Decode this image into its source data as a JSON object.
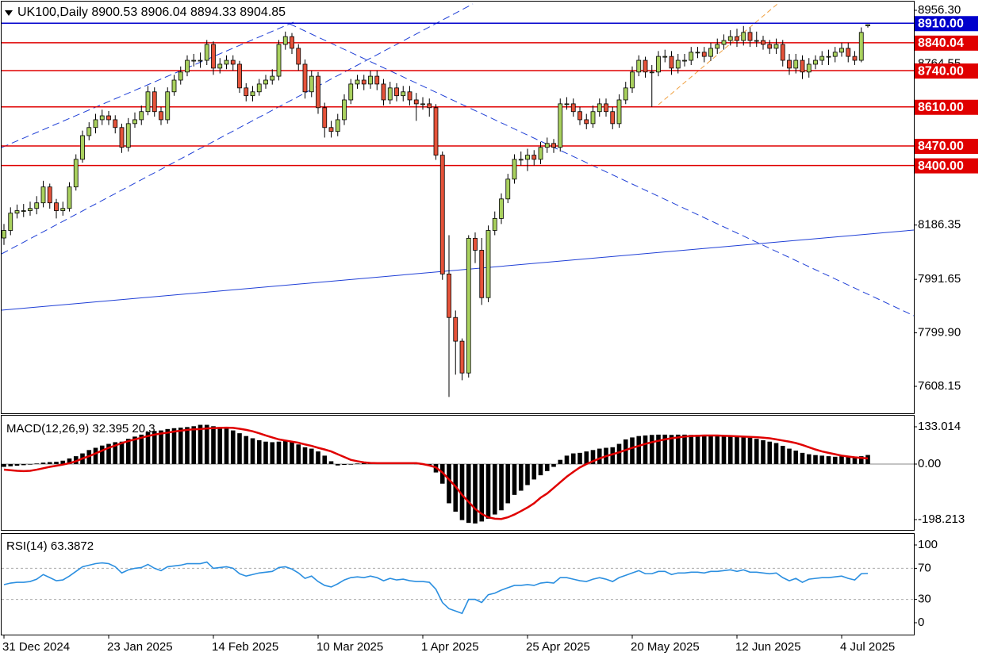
{
  "chart_data": [
    {
      "type": "candlestick",
      "title": "UK100,Daily 8900.53 8906.04 8894.33 8904.85",
      "categories": [
        "31 Dec 2024",
        null,
        null,
        null,
        null,
        null,
        null,
        null,
        null,
        null,
        null,
        null,
        null,
        null,
        null,
        null,
        "23 Jan 2025",
        null,
        null,
        null,
        null,
        null,
        null,
        null,
        null,
        null,
        null,
        null,
        null,
        null,
        null,
        null,
        "14 Feb 2025",
        null,
        null,
        null,
        null,
        null,
        null,
        null,
        null,
        null,
        null,
        null,
        null,
        null,
        null,
        null,
        "10 Mar 2025",
        null,
        null,
        null,
        null,
        null,
        null,
        null,
        null,
        null,
        null,
        null,
        null,
        null,
        null,
        null,
        "1 Apr 2025",
        null,
        null,
        null,
        null,
        null,
        null,
        null,
        null,
        null,
        null,
        null,
        null,
        null,
        null,
        null,
        "25 Apr 2025",
        null,
        null,
        null,
        null,
        null,
        null,
        null,
        null,
        null,
        null,
        null,
        null,
        null,
        null,
        null,
        "20 May 2025",
        null,
        null,
        null,
        null,
        null,
        null,
        null,
        null,
        null,
        null,
        null,
        null,
        null,
        null,
        null,
        "12 Jun 2025",
        null,
        null,
        null,
        null,
        null,
        null,
        null,
        null,
        null,
        null,
        null,
        null,
        null,
        null,
        null,
        "4 Jul 2025",
        null,
        null,
        null,
        null
      ],
      "open": [
        8140,
        8167,
        8229,
        8238,
        8238,
        8246,
        8266,
        8323,
        8266,
        8238,
        8246,
        8323,
        8422,
        8507,
        8536,
        8564,
        8578,
        8564,
        8536,
        8465,
        8550,
        8564,
        8593,
        8664,
        8593,
        8564,
        8664,
        8706,
        8735,
        8777,
        8777,
        8777,
        8834,
        8749,
        8763,
        8777,
        8763,
        8678,
        8650,
        8664,
        8692,
        8706,
        8720,
        8834,
        8862,
        8820,
        8763,
        8664,
        8720,
        8607,
        8536,
        8522,
        8564,
        8635,
        8692,
        8706,
        8692,
        8720,
        8692,
        8635,
        8678,
        8650,
        8664,
        8635,
        8621,
        8621,
        8607,
        8437,
        8011,
        7855,
        7770,
        7656,
        8139,
        8096,
        7926,
        8167,
        8210,
        8280,
        8351,
        8422,
        8422,
        8437,
        8422,
        8465,
        8479,
        8465,
        8621,
        8621,
        8593,
        8564,
        8550,
        8593,
        8621,
        8593,
        8550,
        8635,
        8678,
        8735,
        8777,
        8735,
        8735,
        8791,
        8791,
        8749,
        8777,
        8777,
        8806,
        8806,
        8791,
        8820,
        8834,
        8848,
        8862,
        8848,
        8877,
        8848,
        8848,
        8834,
        8820,
        8834,
        8777,
        8749,
        8777,
        8735,
        8763,
        8777,
        8791,
        8791,
        8806,
        8820,
        8791,
        8777,
        8900.53
      ],
      "high": [
        8190,
        8250,
        8260,
        8262,
        8270,
        8290,
        8345,
        8335,
        8280,
        8270,
        8340,
        8440,
        8525,
        8555,
        8585,
        8600,
        8595,
        8580,
        8550,
        8570,
        8590,
        8615,
        8685,
        8680,
        8610,
        8680,
        8725,
        8755,
        8795,
        8800,
        8805,
        8850,
        8845,
        8785,
        8795,
        8795,
        8775,
        8695,
        8685,
        8710,
        8725,
        8745,
        8850,
        8880,
        8875,
        8835,
        8780,
        8740,
        8735,
        8625,
        8560,
        8585,
        8655,
        8710,
        8725,
        8725,
        8740,
        8740,
        8710,
        8700,
        8695,
        8685,
        8685,
        8660,
        8645,
        8640,
        8620,
        8450,
        8150,
        7880,
        7780,
        8150,
        8160,
        8140,
        8185,
        8235,
        8300,
        8370,
        8440,
        8450,
        8460,
        8455,
        8485,
        8500,
        8495,
        8640,
        8645,
        8640,
        8610,
        8585,
        8615,
        8640,
        8640,
        8610,
        8655,
        8700,
        8755,
        8795,
        8790,
        8760,
        8810,
        8815,
        8810,
        8800,
        8800,
        8825,
        8825,
        8825,
        8840,
        8855,
        8870,
        8885,
        8890,
        8900,
        8895,
        8880,
        8865,
        8850,
        8855,
        8850,
        8800,
        8800,
        8795,
        8785,
        8795,
        8810,
        8815,
        8825,
        8840,
        8840,
        8810,
        8895,
        8906.04
      ],
      "low": [
        8115,
        8150,
        8210,
        8215,
        8220,
        8225,
        8250,
        8245,
        8210,
        8220,
        8235,
        8310,
        8410,
        8490,
        8515,
        8545,
        8545,
        8515,
        8445,
        8450,
        8535,
        8545,
        8580,
        8575,
        8545,
        8550,
        8650,
        8690,
        8720,
        8755,
        8750,
        8760,
        8725,
        8730,
        8745,
        8740,
        8660,
        8630,
        8630,
        8650,
        8675,
        8690,
        8705,
        8815,
        8800,
        8740,
        8640,
        8645,
        8585,
        8500,
        8500,
        8505,
        8545,
        8620,
        8675,
        8670,
        8675,
        8670,
        8615,
        8620,
        8630,
        8630,
        8615,
        8560,
        8600,
        8575,
        8420,
        7990,
        7570,
        7650,
        7630,
        7640,
        8050,
        7900,
        7910,
        8150,
        8190,
        8265,
        8335,
        8400,
        8380,
        8400,
        8405,
        8445,
        8445,
        8450,
        8600,
        8575,
        8545,
        8530,
        8535,
        8575,
        8575,
        8530,
        8535,
        8620,
        8660,
        8720,
        8715,
        8610,
        8720,
        8770,
        8725,
        8730,
        8755,
        8760,
        8785,
        8770,
        8775,
        8800,
        8815,
        8830,
        8825,
        8830,
        8825,
        8825,
        8815,
        8800,
        8800,
        8755,
        8725,
        8730,
        8710,
        8715,
        8745,
        8760,
        8760,
        8770,
        8790,
        8770,
        8760,
        8770,
        8894.33
      ],
      "close": [
        8167,
        8229,
        8238,
        8238,
        8246,
        8266,
        8323,
        8266,
        8238,
        8246,
        8323,
        8422,
        8507,
        8536,
        8564,
        8578,
        8564,
        8536,
        8465,
        8550,
        8564,
        8593,
        8664,
        8593,
        8564,
        8664,
        8706,
        8735,
        8777,
        8777,
        8777,
        8834,
        8749,
        8763,
        8777,
        8763,
        8678,
        8650,
        8664,
        8692,
        8706,
        8720,
        8834,
        8862,
        8820,
        8763,
        8664,
        8720,
        8607,
        8536,
        8522,
        8564,
        8635,
        8692,
        8706,
        8692,
        8720,
        8692,
        8635,
        8678,
        8650,
        8664,
        8635,
        8621,
        8621,
        8607,
        8437,
        8011,
        7855,
        7770,
        7656,
        8139,
        8096,
        7926,
        8167,
        8210,
        8280,
        8351,
        8422,
        8422,
        8437,
        8422,
        8465,
        8479,
        8465,
        8621,
        8621,
        8593,
        8564,
        8550,
        8593,
        8621,
        8593,
        8550,
        8635,
        8678,
        8735,
        8777,
        8735,
        8735,
        8791,
        8791,
        8749,
        8777,
        8777,
        8806,
        8806,
        8791,
        8820,
        8834,
        8848,
        8862,
        8848,
        8877,
        8848,
        8848,
        8834,
        8820,
        8834,
        8777,
        8749,
        8777,
        8735,
        8763,
        8777,
        8791,
        8791,
        8806,
        8820,
        8791,
        8777,
        8877,
        8904.85
      ],
      "up_color": "#a9d15e",
      "down_color": "#e5533a",
      "ylim": [
        7511.5,
        8990.4
      ],
      "yticks": [
        {
          "value": 8956.3,
          "label": "8956.30"
        },
        {
          "value": 8764.55,
          "label": "8764.55"
        },
        {
          "value": 8186.35,
          "label": "8186.35"
        },
        {
          "value": 7991.65,
          "label": "7991.65"
        },
        {
          "value": 7799.9,
          "label": "7799.90"
        },
        {
          "value": 7608.15,
          "label": "7608.15"
        }
      ],
      "levels": [
        {
          "value": 8910,
          "label": "8910.00",
          "color": "#0000cc"
        },
        {
          "value": 8840.04,
          "label": "8840.04",
          "color": "#e00000"
        },
        {
          "value": 8740,
          "label": "8740.00",
          "color": "#e00000"
        },
        {
          "value": 8610,
          "label": "8610.00",
          "color": "#e00000"
        },
        {
          "value": 8470,
          "label": "8470.00",
          "color": "#e00000"
        },
        {
          "value": 8400,
          "label": "8400.00",
          "color": "#e00000"
        }
      ]
    },
    {
      "type": "macd",
      "title": "MACD(12,26,9) 32.395 20.3",
      "histogram": {
        "color": "#000000",
        "values": [
          -10,
          -8,
          -6,
          -4,
          -2,
          2,
          5,
          7,
          8,
          12,
          20,
          28,
          38,
          50,
          58,
          66,
          72,
          78,
          80,
          90,
          98,
          105,
          115,
          118,
          120,
          125,
          128,
          130,
          132,
          135,
          140,
          140,
          135,
          132,
          130,
          120,
          110,
          100,
          92,
          85,
          80,
          78,
          80,
          82,
          78,
          70,
          60,
          55,
          45,
          30,
          10,
          -5,
          -3,
          -2,
          2,
          3,
          4,
          3,
          2,
          2,
          2,
          2,
          2,
          1,
          -3,
          -6,
          -30,
          -70,
          -140,
          -170,
          -200,
          -210,
          -212,
          -205,
          -195,
          -180,
          -165,
          -140,
          -110,
          -95,
          -75,
          -55,
          -40,
          -25,
          -10,
          15,
          30,
          38,
          40,
          45,
          50,
          55,
          58,
          60,
          72,
          88,
          95,
          100,
          102,
          104,
          105,
          105,
          104,
          105,
          105,
          104,
          104,
          103,
          103,
          103,
          102,
          100,
          98,
          96,
          94,
          90,
          85,
          80,
          75,
          65,
          55,
          48,
          40,
          35,
          32,
          30,
          28,
          26,
          28,
          25,
          24,
          28,
          32.395
        ]
      },
      "signal": {
        "color": "#e00000",
        "values": [
          -20,
          -22,
          -24,
          -25,
          -24,
          -20,
          -15,
          -10,
          -6,
          -2,
          3,
          10,
          20,
          28,
          38,
          48,
          58,
          66,
          75,
          82,
          88,
          94,
          100,
          105,
          109,
          112,
          116,
          119,
          122,
          124,
          125,
          127,
          128,
          129,
          130,
          129,
          126,
          122,
          117,
          110,
          102,
          95,
          88,
          84,
          80,
          76,
          70,
          65,
          58,
          52,
          45,
          35,
          25,
          15,
          10,
          6,
          4,
          3,
          3,
          3,
          3,
          3,
          3,
          3,
          0,
          -5,
          -12,
          -30,
          -55,
          -80,
          -110,
          -135,
          -160,
          -178,
          -190,
          -195,
          -196,
          -190,
          -180,
          -168,
          -155,
          -140,
          -120,
          -105,
          -85,
          -65,
          -45,
          -28,
          -12,
          0,
          10,
          20,
          28,
          35,
          42,
          50,
          58,
          65,
          72,
          78,
          83,
          88,
          92,
          95,
          98,
          100,
          101,
          102,
          102,
          102,
          101,
          100,
          99,
          98,
          97,
          96,
          94,
          92,
          88,
          84,
          80,
          75,
          68,
          60,
          52,
          45,
          40,
          35,
          30,
          27,
          24,
          22,
          20.3
        ]
      },
      "ylim": [
        -235,
        175.5
      ],
      "yticks": [
        {
          "value": 133.014,
          "label": "133.014"
        },
        {
          "value": 0,
          "label": "0.00"
        },
        {
          "value": -198.213,
          "label": "-198.213"
        }
      ]
    },
    {
      "type": "line",
      "title": "RSI(14) 63.3872",
      "color": "#2b8fe0",
      "values": [
        49,
        51,
        52,
        52,
        53,
        56,
        62,
        58,
        54,
        55,
        60,
        66,
        72,
        74,
        76,
        77,
        76,
        72,
        64,
        68,
        70,
        71,
        75,
        70,
        67,
        72,
        73,
        74,
        76,
        76,
        76,
        78,
        70,
        71,
        72,
        70,
        63,
        60,
        62,
        64,
        65,
        66,
        71,
        72,
        69,
        64,
        57,
        60,
        53,
        48,
        46,
        50,
        55,
        58,
        59,
        58,
        60,
        58,
        54,
        57,
        55,
        56,
        54,
        53,
        53,
        52,
        43,
        26,
        18,
        15,
        12,
        30,
        30,
        26,
        36,
        38,
        42,
        45,
        48,
        48,
        49,
        48,
        51,
        52,
        51,
        58,
        58,
        56,
        54,
        53,
        56,
        58,
        56,
        53,
        58,
        61,
        64,
        67,
        63,
        63,
        66,
        66,
        62,
        64,
        64,
        65,
        65,
        64,
        66,
        66,
        67,
        68,
        66,
        68,
        65,
        65,
        64,
        63,
        64,
        58,
        54,
        57,
        52,
        56,
        57,
        58,
        58,
        59,
        60,
        57,
        55,
        63,
        63.3872
      ],
      "ylim": [
        -15.3,
        115.3
      ],
      "yticks": [
        100,
        70,
        30,
        0
      ],
      "levels": [
        70,
        30
      ]
    }
  ]
}
